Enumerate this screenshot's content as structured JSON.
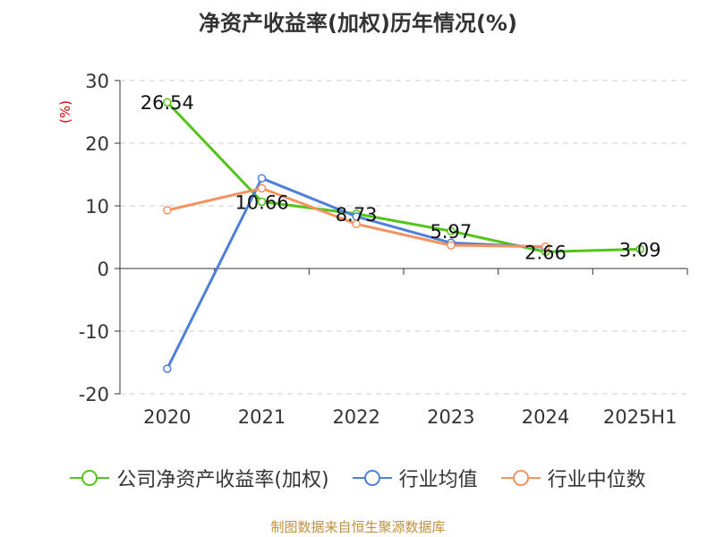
{
  "colors": {
    "series_green": "#52c41a",
    "series_blue": "#4e7fdb",
    "series_orange": "#f59260",
    "ylabel_red": "#d40000",
    "source_gold": "#c0913a",
    "grid": "#cccccc",
    "axis": "#333333"
  },
  "source_text": "制图数据来自恒生聚源数据库",
  "chart_data": {
    "type": "line",
    "title": "净资产收益率(加权)历年情况(%)",
    "xlabel": "",
    "ylabel": "(%)",
    "categories": [
      "2020",
      "2021",
      "2022",
      "2023",
      "2024",
      "2025H1"
    ],
    "ylim": [
      -20,
      30
    ],
    "yticks": [
      30,
      20,
      10,
      0,
      -10,
      -20
    ],
    "ytick_labels": [
      "30",
      "20",
      "10",
      "0",
      "-10",
      "-20"
    ],
    "grid": true,
    "legend_position": "bottom",
    "series": [
      {
        "name": "公司净资产收益率(加权)",
        "color_key": "series_green",
        "values": [
          26.54,
          10.66,
          8.73,
          5.97,
          2.66,
          3.09
        ],
        "labels": [
          "26.54",
          "10.66",
          "8.73",
          "5.97",
          "2.66",
          "3.09"
        ]
      },
      {
        "name": "行业均值",
        "color_key": "series_blue",
        "values": [
          -16.0,
          14.4,
          8.3,
          4.1,
          3.4,
          null
        ]
      },
      {
        "name": "行业中位数",
        "color_key": "series_orange",
        "values": [
          9.3,
          12.8,
          7.1,
          3.7,
          3.5,
          null
        ]
      }
    ]
  }
}
